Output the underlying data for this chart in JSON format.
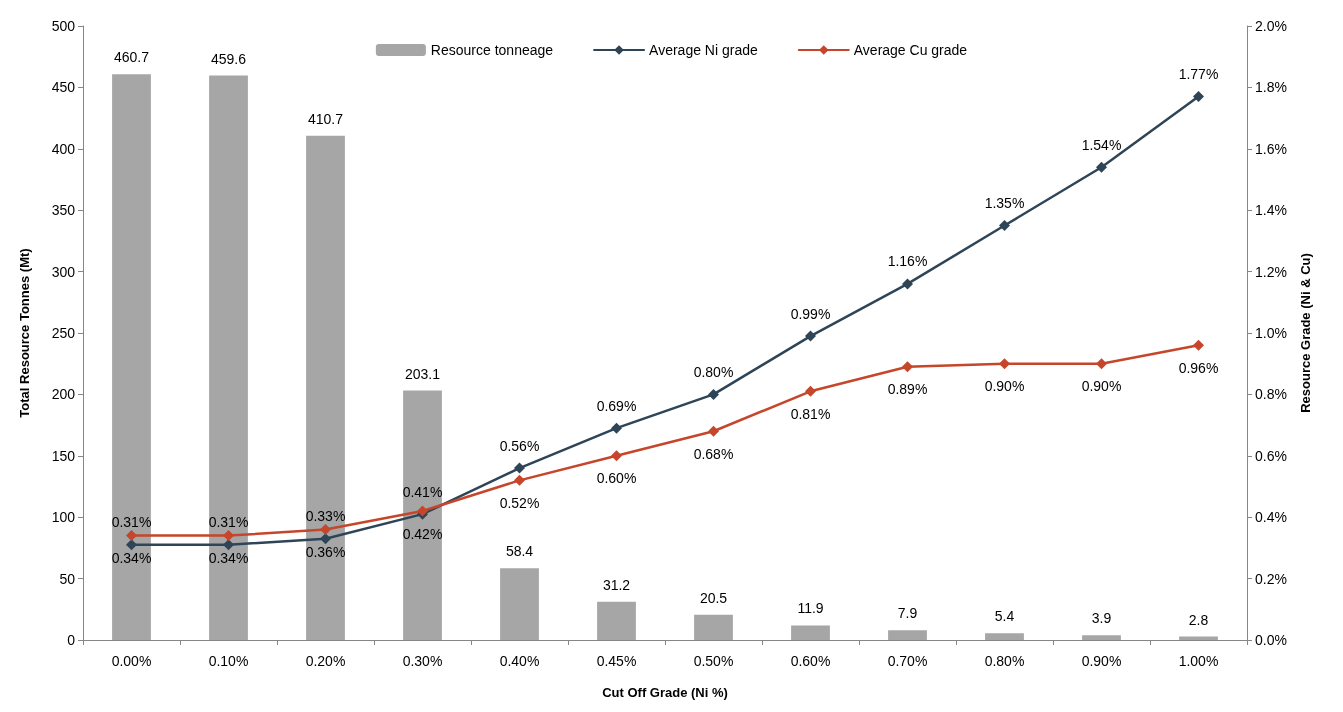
{
  "chart_data": {
    "type": "bar",
    "xlabel": "Cut Off Grade (Ni %)",
    "ylabel": "Total Resource Tonnes (Mt)",
    "y2label": "Resource Grade (Ni & Cu)",
    "categories": [
      "0.00%",
      "0.10%",
      "0.20%",
      "0.30%",
      "0.40%",
      "0.45%",
      "0.50%",
      "0.60%",
      "0.70%",
      "0.80%",
      "0.90%",
      "1.00%"
    ],
    "series": [
      {
        "name": "Resource tonneage",
        "color": "#a6a6a6",
        "values": [
          460.7,
          459.6,
          410.7,
          203.1,
          58.4,
          31.2,
          20.5,
          11.9,
          7.9,
          5.4,
          3.9,
          2.8
        ],
        "value_labels": [
          "460.7",
          "459.6",
          "410.7",
          "203.1",
          "58.4",
          "31.2",
          "20.5",
          "11.9",
          "7.9",
          "5.4",
          "3.9",
          "2.8"
        ]
      },
      {
        "name": "Average Ni grade",
        "type": "line",
        "axis": "y2",
        "color": "#2e4457",
        "values": [
          0.31,
          0.31,
          0.33,
          0.41,
          0.56,
          0.69,
          0.8,
          0.99,
          1.16,
          1.35,
          1.54,
          1.77
        ],
        "value_labels": [
          "0.31%",
          "0.31%",
          "0.33%",
          "0.41%",
          "0.56%",
          "0.69%",
          "0.80%",
          "0.99%",
          "1.16%",
          "1.35%",
          "1.54%",
          "1.77%"
        ]
      },
      {
        "name": "Average Cu grade",
        "type": "line",
        "axis": "y2",
        "color": "#c5462a",
        "values": [
          0.34,
          0.34,
          0.36,
          0.42,
          0.52,
          0.6,
          0.68,
          0.81,
          0.89,
          0.9,
          0.9,
          0.96
        ],
        "value_labels": [
          "0.34%",
          "0.34%",
          "0.36%",
          "0.42%",
          "0.52%",
          "0.60%",
          "0.68%",
          "0.81%",
          "0.89%",
          "0.90%",
          "0.90%",
          "0.96%"
        ]
      }
    ],
    "ylim": [
      0,
      500
    ],
    "yticks": [
      0,
      50,
      100,
      150,
      200,
      250,
      300,
      350,
      400,
      450,
      500
    ],
    "y2lim": [
      0,
      2.0
    ],
    "y2ticks": [
      {
        "value": 0,
        "label": "0.0%"
      },
      {
        "value": 0.2,
        "label": "0.2%"
      },
      {
        "value": 0.4,
        "label": "0.4%"
      },
      {
        "value": 0.6,
        "label": "0.6%"
      },
      {
        "value": 0.8,
        "label": "0.8%"
      },
      {
        "value": 1.0,
        "label": "1.0%"
      },
      {
        "value": 1.2,
        "label": "1.2%"
      },
      {
        "value": 1.4,
        "label": "1.4%"
      },
      {
        "value": 1.6,
        "label": "1.6%"
      },
      {
        "value": 1.8,
        "label": "1.8%"
      },
      {
        "value": 2.0,
        "label": "2.0%"
      }
    ],
    "legend": "top",
    "grid": false,
    "marker": "diamond",
    "line_style": "solid"
  }
}
